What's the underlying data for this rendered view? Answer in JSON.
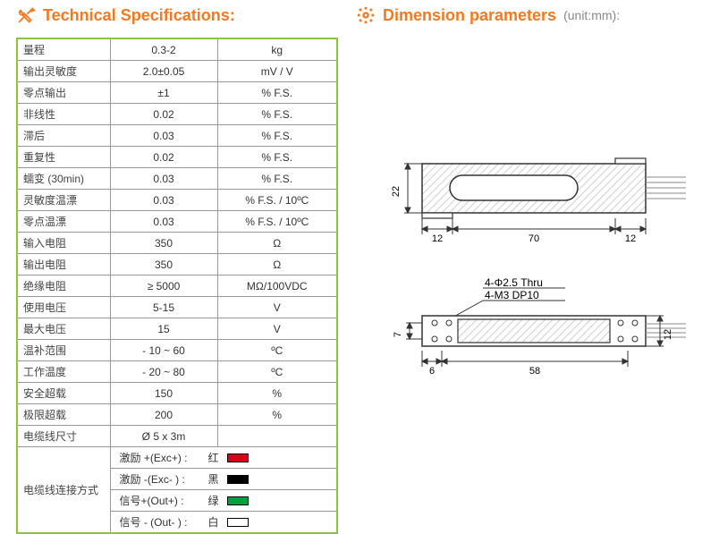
{
  "headings": {
    "tech": "Technical Specifications:",
    "dim": "Dimension parameters",
    "dim_unit": "(unit:mm):"
  },
  "specs": {
    "rows": [
      {
        "label": "量程",
        "value": "0.3-2",
        "unit": "kg"
      },
      {
        "label": "输出灵敏度",
        "value": "2.0±0.05",
        "unit": "mV / V"
      },
      {
        "label": "零点输出",
        "value": "±1",
        "unit": "% F.S."
      },
      {
        "label": "非线性",
        "value": "0.02",
        "unit": "% F.S."
      },
      {
        "label": "滞后",
        "value": "0.03",
        "unit": "% F.S."
      },
      {
        "label": "重复性",
        "value": "0.02",
        "unit": "% F.S."
      },
      {
        "label": "蠕变 (30min)",
        "value": "0.03",
        "unit": "% F.S."
      },
      {
        "label": "灵敏度温漂",
        "value": "0.03",
        "unit": "% F.S. / 10ºC"
      },
      {
        "label": "零点温漂",
        "value": "0.03",
        "unit": "% F.S. / 10ºC"
      },
      {
        "label": "输入电阻",
        "value": "350",
        "unit": "Ω"
      },
      {
        "label": "输出电阻",
        "value": "350",
        "unit": "Ω"
      },
      {
        "label": "绝缘电阻",
        "value": "≥ 5000",
        "unit": "MΩ/100VDC"
      },
      {
        "label": "使用电压",
        "value": "5-15",
        "unit": "V"
      },
      {
        "label": "最大电压",
        "value": "15",
        "unit": "V"
      },
      {
        "label": "温补范围",
        "value": "- 10 ~ 60",
        "unit": "ºC"
      },
      {
        "label": "工作温度",
        "value": "- 20 ~ 80",
        "unit": "ºC"
      },
      {
        "label": "安全超载",
        "value": "150",
        "unit": "%"
      },
      {
        "label": "极限超载",
        "value": "200",
        "unit": "%"
      },
      {
        "label": "电缆线尺寸",
        "value": "Ø 5 x 3m",
        "unit": ""
      }
    ],
    "wire_group_label": "电缆线连接方式",
    "wires": [
      {
        "label": "激励 +(Exc+) :",
        "name": "红",
        "color": "#d4031b"
      },
      {
        "label": "激励 -(Exc- ) :",
        "name": "黑",
        "color": "#000000"
      },
      {
        "label": "信号+(Out+) :",
        "name": "绿",
        "color": "#00a03e"
      },
      {
        "label": "信号 - (Out- ) :",
        "name": "白",
        "color": "#ffffff"
      }
    ]
  },
  "diagram": {
    "front": {
      "width_label": "70",
      "left_ear": "12",
      "right_ear": "12",
      "height_label": "22"
    },
    "top": {
      "hole_note1": "4-Φ2.5 Thru",
      "hole_note2": "4-M3 DP10",
      "left_offset": "6",
      "center_span": "58",
      "right_h": "12",
      "left_h": "7"
    },
    "colors": {
      "stroke": "#333333",
      "hatch": "#cfcfcf",
      "icon": "#f47920"
    }
  }
}
